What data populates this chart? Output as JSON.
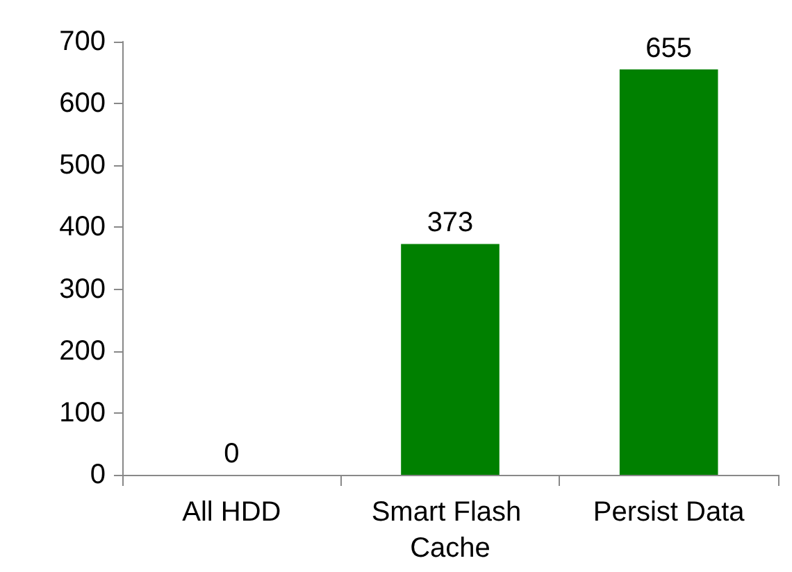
{
  "chart_data": {
    "type": "bar",
    "categories": [
      "All HDD",
      "Smart Flash Cache",
      "Persist Data"
    ],
    "values": [
      0,
      373,
      655
    ],
    "color": "#008000",
    "ylim": [
      0,
      700
    ],
    "yticks": [
      0,
      100,
      200,
      300,
      400,
      500,
      600,
      700
    ],
    "grid": false,
    "data_labels": true
  }
}
